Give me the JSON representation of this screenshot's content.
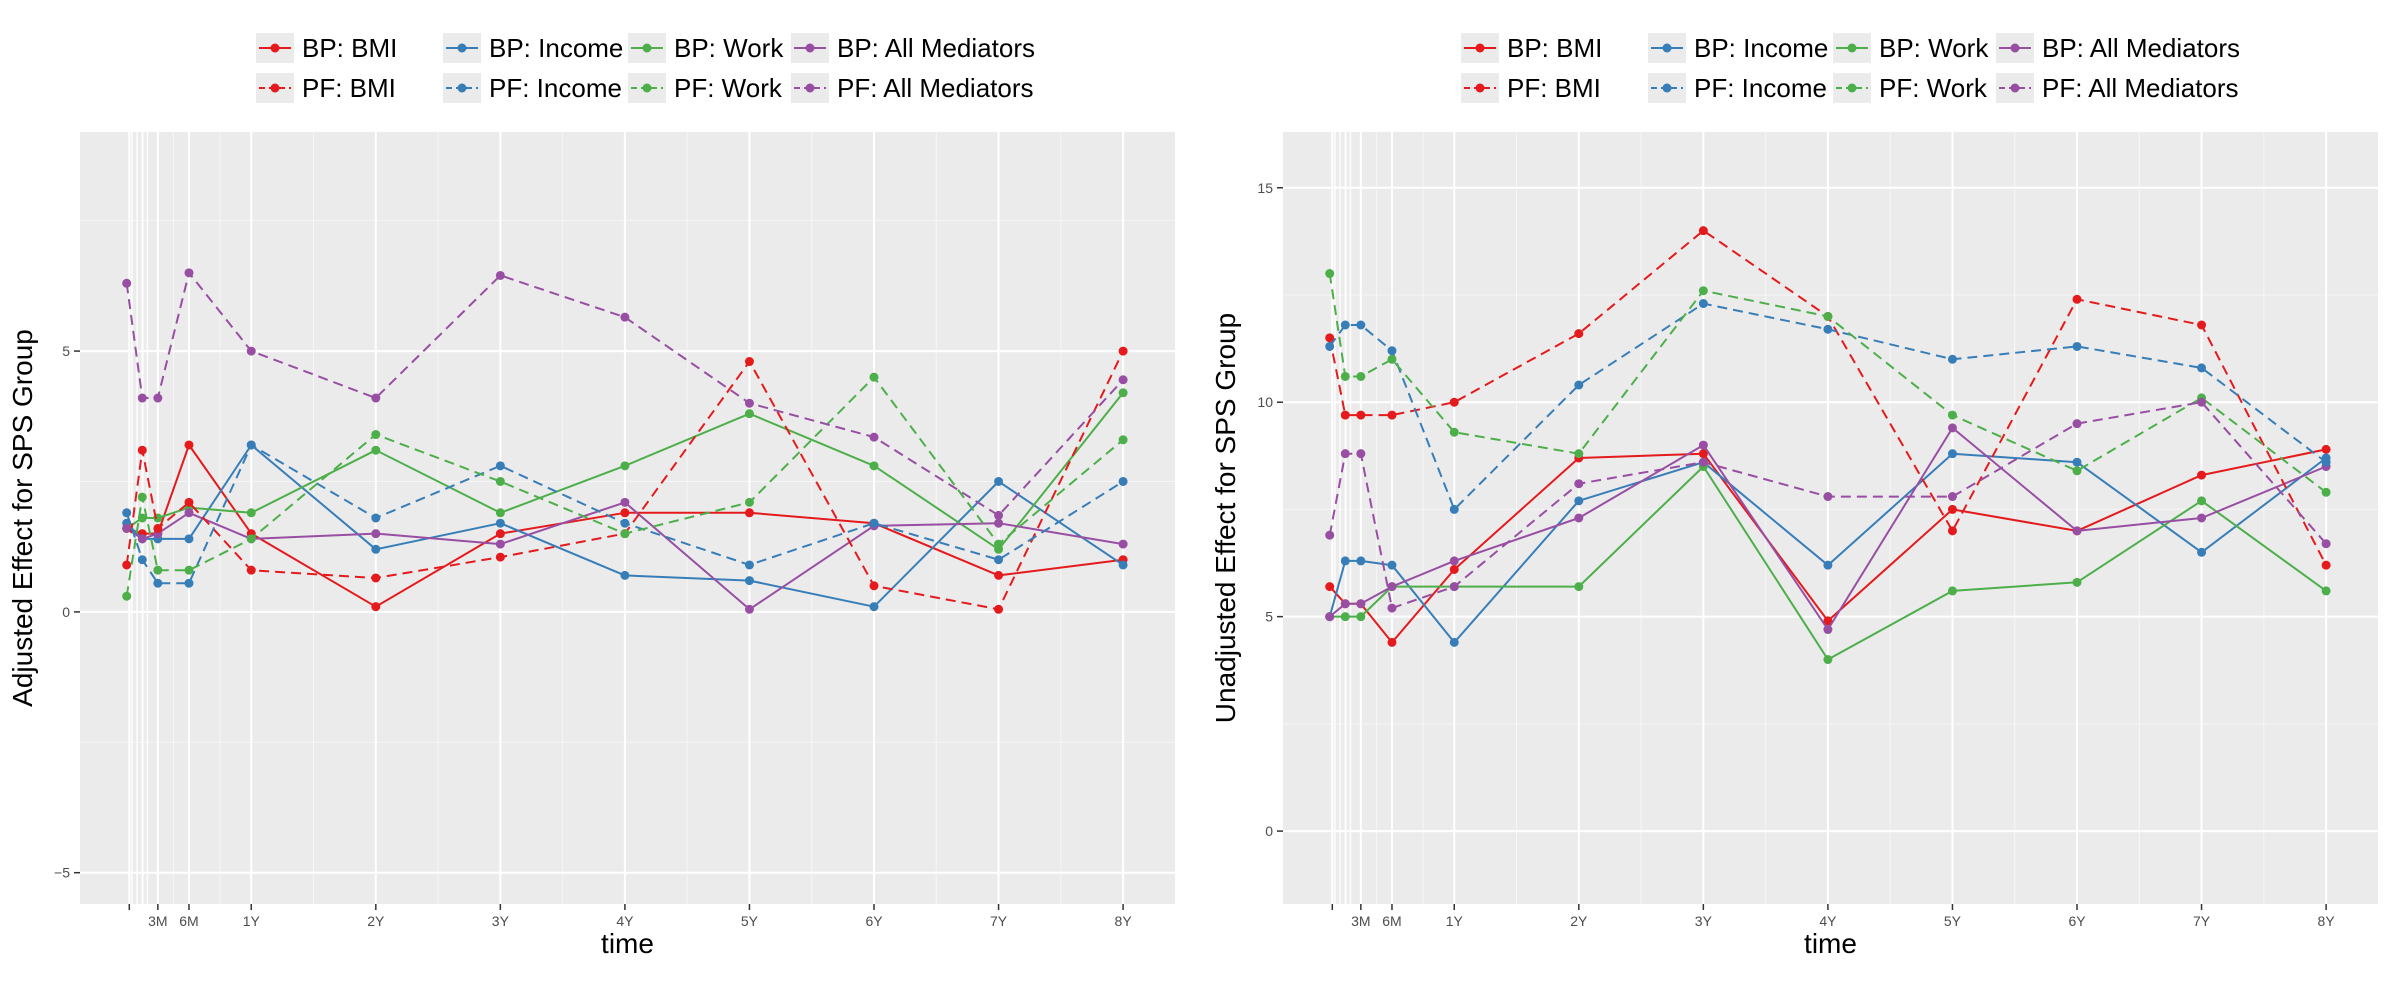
{
  "colors": {
    "BMI": "#e41a1c",
    "Income": "#377eb8",
    "Work": "#4daf4a",
    "All Mediators": "#984ea3",
    "panel_bg": "#ebebeb",
    "grid": "#ffffff",
    "text": "#4d4d4d"
  },
  "chart_data": [
    {
      "type": "line",
      "panel": "left",
      "xlabel": "time",
      "ylabel": "Adjusted Effect for SPS Group",
      "x_ticks": [
        {
          "value": 0.25,
          "label": ""
        },
        {
          "value": 3,
          "label": "3M"
        },
        {
          "value": 6,
          "label": "6M"
        },
        {
          "value": 12,
          "label": "1Y"
        },
        {
          "value": 24,
          "label": "2Y"
        },
        {
          "value": 36,
          "label": "3Y"
        },
        {
          "value": 48,
          "label": "4Y"
        },
        {
          "value": 60,
          "label": "5Y"
        },
        {
          "value": 72,
          "label": "6Y"
        },
        {
          "value": 84,
          "label": "7Y"
        },
        {
          "value": 96,
          "label": "8Y"
        }
      ],
      "x_minor": [
        0.5,
        1,
        1.5,
        2
      ],
      "xlim": [
        -4.5,
        101
      ],
      "ylim": [
        -5.6,
        9.2
      ],
      "y_ticks": [
        -5,
        0,
        5
      ],
      "legend": {
        "position": "top",
        "entries": [
          "BP: BMI",
          "BP: Income",
          "BP: Work",
          "BP: All Mediators",
          "PF: BMI",
          "PF: Income",
          "PF: Work",
          "PF: All Mediators"
        ]
      },
      "x": [
        0,
        1.5,
        3,
        6,
        12,
        24,
        36,
        48,
        60,
        72,
        84,
        96
      ],
      "series": [
        {
          "name": "BP: BMI",
          "group": "BMI",
          "line": "solid",
          "values": [
            1.6,
            1.5,
            1.5,
            3.2,
            1.5,
            0.1,
            1.5,
            1.9,
            1.9,
            1.7,
            0.7,
            1.0
          ]
        },
        {
          "name": "BP: Income",
          "group": "Income",
          "line": "solid",
          "values": [
            1.7,
            1.4,
            1.4,
            1.4,
            3.2,
            1.2,
            1.7,
            0.7,
            0.6,
            0.1,
            2.5,
            0.9
          ]
        },
        {
          "name": "BP: Work",
          "group": "Work",
          "line": "solid",
          "values": [
            1.6,
            1.8,
            1.8,
            2.0,
            1.9,
            3.1,
            1.9,
            2.8,
            3.8,
            2.8,
            1.2,
            4.2
          ]
        },
        {
          "name": "BP: All Mediators",
          "group": "All Mediators",
          "line": "solid",
          "values": [
            1.6,
            1.4,
            1.5,
            1.9,
            1.4,
            1.5,
            1.3,
            2.1,
            0.05,
            1.65,
            1.7,
            1.3
          ]
        },
        {
          "name": "PF: BMI",
          "group": "BMI",
          "line": "dashed",
          "values": [
            0.9,
            3.1,
            1.6,
            2.1,
            0.8,
            0.65,
            1.05,
            1.5,
            4.8,
            0.5,
            0.05,
            5.0
          ]
        },
        {
          "name": "PF: Income",
          "group": "Income",
          "line": "dashed",
          "values": [
            1.9,
            1.0,
            0.55,
            0.55,
            3.2,
            1.8,
            2.8,
            1.7,
            0.9,
            1.7,
            1.0,
            2.5
          ]
        },
        {
          "name": "PF: Work",
          "group": "Work",
          "line": "dashed",
          "values": [
            0.3,
            2.2,
            0.8,
            0.8,
            1.4,
            3.4,
            2.5,
            1.5,
            2.1,
            4.5,
            1.3,
            3.3
          ]
        },
        {
          "name": "PF: All Mediators",
          "group": "All Mediators",
          "line": "dashed",
          "values": [
            6.3,
            4.1,
            4.1,
            6.5,
            5.0,
            4.1,
            6.45,
            5.65,
            4.0,
            3.35,
            1.85,
            4.45
          ]
        }
      ]
    },
    {
      "type": "line",
      "panel": "right",
      "xlabel": "time",
      "ylabel": "Unadjusted Effect for SPS Group",
      "x_ticks": [
        {
          "value": 0.25,
          "label": ""
        },
        {
          "value": 3,
          "label": "3M"
        },
        {
          "value": 6,
          "label": "6M"
        },
        {
          "value": 12,
          "label": "1Y"
        },
        {
          "value": 24,
          "label": "2Y"
        },
        {
          "value": 36,
          "label": "3Y"
        },
        {
          "value": 48,
          "label": "4Y"
        },
        {
          "value": 60,
          "label": "5Y"
        },
        {
          "value": 72,
          "label": "6Y"
        },
        {
          "value": 84,
          "label": "7Y"
        },
        {
          "value": 96,
          "label": "8Y"
        }
      ],
      "x_minor": [
        0.5,
        1,
        1.5,
        2
      ],
      "xlim": [
        -4.5,
        101
      ],
      "ylim": [
        -1.7,
        16.3
      ],
      "y_ticks": [
        0,
        5,
        10,
        15
      ],
      "legend": {
        "position": "top",
        "entries": [
          "BP: BMI",
          "BP: Income",
          "BP: Work",
          "BP: All Mediators",
          "PF: BMI",
          "PF: Income",
          "PF: Work",
          "PF: All Mediators"
        ]
      },
      "x": [
        0,
        1.5,
        3,
        6,
        12,
        24,
        36,
        48,
        60,
        72,
        84,
        96
      ],
      "series": [
        {
          "name": "BP: BMI",
          "group": "BMI",
          "line": "solid",
          "values": [
            5.7,
            5.3,
            5.3,
            4.4,
            6.1,
            8.7,
            8.8,
            4.9,
            7.5,
            7.0,
            8.3,
            8.9
          ]
        },
        {
          "name": "BP: Income",
          "group": "Income",
          "line": "solid",
          "values": [
            5.0,
            6.3,
            6.3,
            6.2,
            4.4,
            7.7,
            8.6,
            6.2,
            8.8,
            8.6,
            6.5,
            8.7
          ]
        },
        {
          "name": "BP: Work",
          "group": "Work",
          "line": "solid",
          "values": [
            5.0,
            5.0,
            5.0,
            5.7,
            5.7,
            5.7,
            8.5,
            4.0,
            5.6,
            5.8,
            7.7,
            5.6
          ]
        },
        {
          "name": "BP: All Mediators",
          "group": "All Mediators",
          "line": "solid",
          "values": [
            5.0,
            5.3,
            5.3,
            5.7,
            6.3,
            7.3,
            9.0,
            4.7,
            9.4,
            7.0,
            7.3,
            8.5
          ]
        },
        {
          "name": "PF: BMI",
          "group": "BMI",
          "line": "dashed",
          "values": [
            11.5,
            9.7,
            9.7,
            9.7,
            10.0,
            11.6,
            14.0,
            12.0,
            7.0,
            12.4,
            11.8,
            6.2
          ]
        },
        {
          "name": "PF: Income",
          "group": "Income",
          "line": "dashed",
          "values": [
            11.3,
            11.8,
            11.8,
            11.2,
            7.5,
            10.4,
            12.3,
            11.7,
            11.0,
            11.3,
            10.8,
            8.6
          ]
        },
        {
          "name": "PF: Work",
          "group": "Work",
          "line": "dashed",
          "values": [
            13.0,
            10.6,
            10.6,
            11.0,
            9.3,
            8.8,
            12.6,
            12.0,
            9.7,
            8.4,
            10.1,
            7.9
          ]
        },
        {
          "name": "PF: All Mediators",
          "group": "All Mediators",
          "line": "dashed",
          "values": [
            6.9,
            8.8,
            8.8,
            5.2,
            5.7,
            8.1,
            8.6,
            7.8,
            7.8,
            9.5,
            10.0,
            6.7
          ]
        }
      ]
    }
  ]
}
